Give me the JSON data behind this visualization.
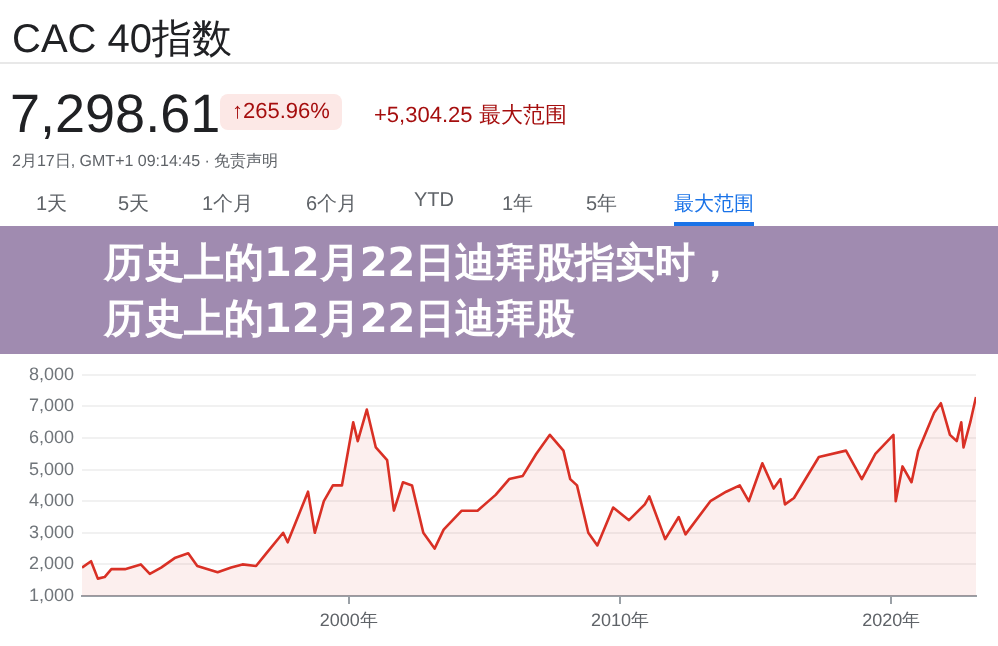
{
  "chart_data": {
    "type": "area",
    "title": "CAC 40指数",
    "subtitle": "7,298.61",
    "annotations": [
      "↑265.96%",
      "+5,304.25 最大范围",
      "2月17日, GMT+1 09:14:45 · 免责声明",
      "1天",
      "5天",
      "1个月",
      "6个月",
      "YTD",
      "1年",
      "5年",
      "最大范围",
      "历史上的12月22日迪拜股指实时，历史上的12月22日迪拜股"
    ],
    "x": [
      "1990-03",
      "1990-07",
      "1990-10",
      "1991-01",
      "1991-04",
      "1991-10",
      "1992-05",
      "1992-09",
      "1993-02",
      "1993-08",
      "1994-02",
      "1994-06",
      "1995-03",
      "1995-09",
      "1996-02",
      "1996-08",
      "1996-12",
      "1997-08",
      "1997-10",
      "1998-07",
      "1998-10",
      "1999-02",
      "1999-06",
      "1999-10",
      "2000-03",
      "2000-05",
      "2000-09",
      "2001-01",
      "2001-06",
      "2001-09",
      "2002-01",
      "2002-05",
      "2002-10",
      "2003-03",
      "2003-07",
      "2004-03",
      "2004-10",
      "2005-06",
      "2005-12",
      "2006-06",
      "2006-12",
      "2007-06",
      "2007-12",
      "2008-03",
      "2008-06",
      "2008-11",
      "2009-03",
      "2009-10",
      "2010-05",
      "2010-12",
      "2011-02",
      "2011-09",
      "2012-03",
      "2012-06",
      "2013-05",
      "2013-12",
      "2014-06",
      "2014-10",
      "2015-04",
      "2015-09",
      "2015-12",
      "2016-02",
      "2016-06",
      "2017-05",
      "2018-05",
      "2018-12",
      "2019-06",
      "2020-02",
      "2020-03",
      "2020-06",
      "2020-10",
      "2021-01",
      "2021-08",
      "2021-11",
      "2022-03",
      "2022-06",
      "2022-08",
      "2022-09",
      "2022-12",
      "2023-02-17"
    ],
    "series": [
      {
        "color": "#d93025",
        "values": [
          1900,
          2100,
          1550,
          1600,
          1850,
          1850,
          2000,
          1700,
          1900,
          2200,
          2350,
          1950,
          1750,
          1900,
          2000,
          1950,
          2300,
          3000,
          2700,
          4300,
          3000,
          4000,
          4500,
          4500,
          6500,
          5900,
          6900,
          5700,
          5300,
          3700,
          4600,
          4500,
          3000,
          2500,
          3100,
          3700,
          3700,
          4200,
          4700,
          4800,
          5500,
          6100,
          5600,
          4700,
          4500,
          3000,
          2600,
          3800,
          3400,
          3900,
          4150,
          2800,
          3500,
          2950,
          4000,
          4300,
          4500,
          4000,
          5200,
          4400,
          4700,
          3900,
          4100,
          5400,
          5600,
          4700,
          5500,
          6100,
          4000,
          5100,
          4600,
          5600,
          6800,
          7100,
          6100,
          5900,
          6500,
          5700,
          6500,
          7298.61
        ]
      }
    ],
    "xlim": [
      "1990-03",
      "2023-02-17"
    ],
    "xticks": [
      {
        "value": "2000",
        "label": "2000年"
      },
      {
        "value": "2010",
        "label": "2010年"
      },
      {
        "value": "2020",
        "label": "2020年"
      }
    ],
    "ylim": [
      1000,
      8000
    ],
    "yticks": [
      {
        "value": 1000,
        "label": "1,000"
      },
      {
        "value": 2000,
        "label": "2,000"
      },
      {
        "value": 3000,
        "label": "3,000"
      },
      {
        "value": 4000,
        "label": "4,000"
      },
      {
        "value": 5000,
        "label": "5,000"
      },
      {
        "value": 6000,
        "label": "6,000"
      },
      {
        "value": 7000,
        "label": "7,000"
      },
      {
        "value": 8000,
        "label": "8,000"
      }
    ],
    "grid": "y",
    "legend": false,
    "marker": "none",
    "line_style": "solid"
  }
}
